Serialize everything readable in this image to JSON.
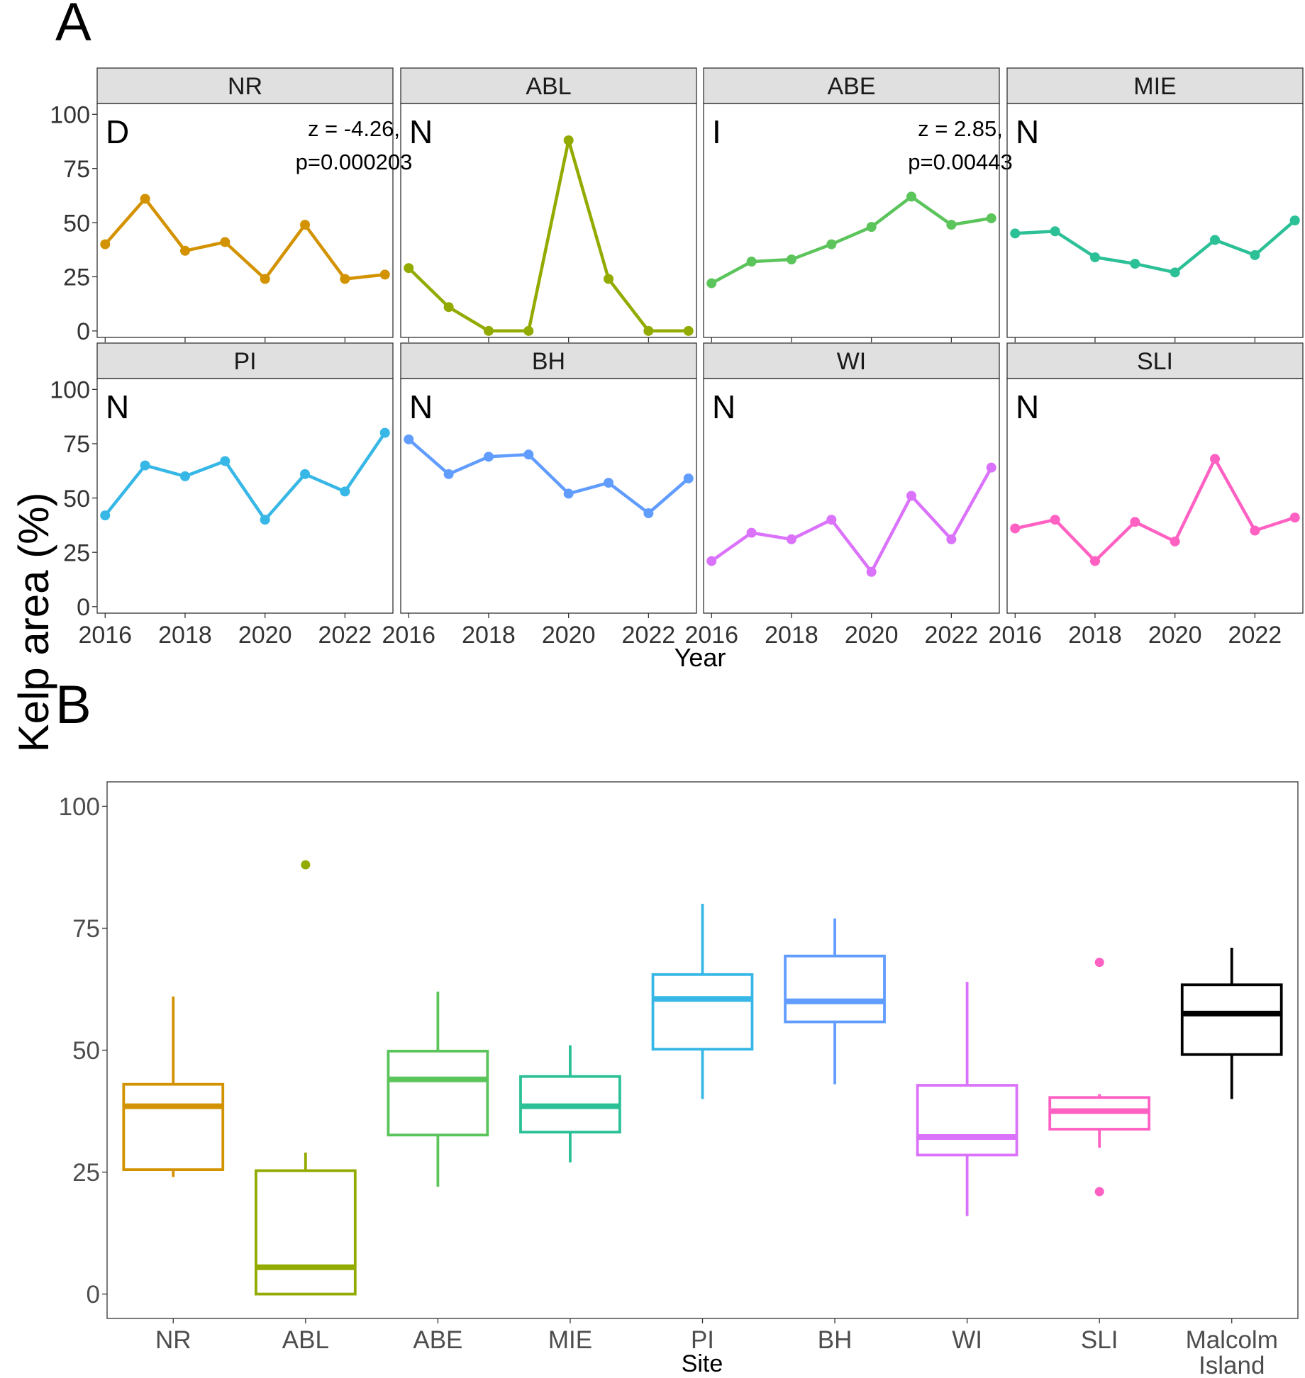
{
  "y_axis_label": "Kelp area (%)",
  "chart_data": [
    {
      "panel_label": "A",
      "type": "line",
      "facet": true,
      "xlabel": "Year",
      "ylabel": "Kelp area (%)",
      "xlim": [
        2015.8,
        2023.2
      ],
      "ylim": [
        -3,
        105
      ],
      "x_ticks": [
        2016,
        2018,
        2020,
        2022
      ],
      "x_tick_labels": [
        "2016",
        "2018",
        "2020",
        "2022"
      ],
      "y_ticks": [
        0,
        25,
        50,
        75,
        100
      ],
      "y_tick_labels": [
        "0",
        "25",
        "50",
        "75",
        "100"
      ],
      "x": [
        2016,
        2017,
        2018,
        2019,
        2020,
        2021,
        2022,
        2023
      ],
      "series": [
        {
          "name": "NR",
          "color": "#D39200",
          "trend": "D",
          "stat_z": "z = -4.26,",
          "stat_p": "p=0.000203",
          "values": [
            40,
            61,
            37,
            41,
            24,
            49,
            24,
            26
          ]
        },
        {
          "name": "ABL",
          "color": "#93AA00",
          "trend": "N",
          "values": [
            29,
            11,
            0,
            0,
            88,
            24,
            0,
            0
          ]
        },
        {
          "name": "ABE",
          "color": "#5BC45B",
          "trend": "I",
          "stat_z": "z = 2.85,",
          "stat_p": "p=0.00443",
          "values": [
            22,
            32,
            33,
            40,
            48,
            62,
            49,
            52
          ]
        },
        {
          "name": "MIE",
          "color": "#2CC097",
          "trend": "N",
          "values": [
            45,
            46,
            34,
            31,
            27,
            42,
            35,
            51
          ]
        },
        {
          "name": "PI",
          "color": "#36B7E6",
          "trend": "N",
          "values": [
            42,
            65,
            60,
            67,
            40,
            61,
            53,
            80
          ]
        },
        {
          "name": "BH",
          "color": "#619CFF",
          "trend": "N",
          "values": [
            77,
            61,
            69,
            70,
            52,
            57,
            43,
            59
          ]
        },
        {
          "name": "WI",
          "color": "#DB72FB",
          "trend": "N",
          "values": [
            21,
            34,
            31,
            40,
            16,
            51,
            31,
            64
          ]
        },
        {
          "name": "SLI",
          "color": "#FF61C3",
          "trend": "N",
          "values": [
            36,
            40,
            21,
            39,
            30,
            68,
            35,
            41
          ]
        }
      ]
    },
    {
      "panel_label": "B",
      "type": "box",
      "xlabel": "Site",
      "ylabel": "Kelp area (%)",
      "ylim": [
        -5,
        105
      ],
      "y_ticks": [
        0,
        25,
        50,
        75,
        100
      ],
      "y_tick_labels": [
        "0",
        "25",
        "50",
        "75",
        "100"
      ],
      "categories": [
        "NR",
        "ABL",
        "ABE",
        "MIE",
        "PI",
        "BH",
        "WI",
        "SLI",
        "Malcolm Island"
      ],
      "category_lines": [
        [
          "NR"
        ],
        [
          "ABL"
        ],
        [
          "ABE"
        ],
        [
          "MIE"
        ],
        [
          "PI"
        ],
        [
          "BH"
        ],
        [
          "WI"
        ],
        [
          "SLI"
        ],
        [
          "Malcolm",
          "Island"
        ]
      ],
      "boxes": [
        {
          "site": "NR",
          "color": "#D39200",
          "whisker_low": 24,
          "q1": 25.5,
          "median": 38.5,
          "q3": 43,
          "whisker_high": 61,
          "outliers": []
        },
        {
          "site": "ABL",
          "color": "#93AA00",
          "whisker_low": 0,
          "q1": 0,
          "median": 5.5,
          "q3": 25.3,
          "whisker_high": 29,
          "outliers": [
            88
          ]
        },
        {
          "site": "ABE",
          "color": "#5BC45B",
          "whisker_low": 22,
          "q1": 32.6,
          "median": 44,
          "q3": 49.8,
          "whisker_high": 62,
          "outliers": []
        },
        {
          "site": "MIE",
          "color": "#2CC097",
          "whisker_low": 27,
          "q1": 33.2,
          "median": 38.5,
          "q3": 44.6,
          "whisker_high": 51,
          "outliers": []
        },
        {
          "site": "PI",
          "color": "#36B7E6",
          "whisker_low": 40,
          "q1": 50.2,
          "median": 60.5,
          "q3": 65.5,
          "whisker_high": 80,
          "outliers": []
        },
        {
          "site": "BH",
          "color": "#619CFF",
          "whisker_low": 43,
          "q1": 55.8,
          "median": 60,
          "q3": 69.3,
          "whisker_high": 77,
          "outliers": []
        },
        {
          "site": "WI",
          "color": "#DB72FB",
          "whisker_low": 16,
          "q1": 28.5,
          "median": 32.2,
          "q3": 42.8,
          "whisker_high": 64,
          "outliers": []
        },
        {
          "site": "SLI",
          "color": "#FF61C3",
          "whisker_low": 30,
          "q1": 33.8,
          "median": 37.5,
          "q3": 40.3,
          "whisker_high": 41,
          "outliers": [
            68,
            21
          ]
        },
        {
          "site": "Malcolm Island",
          "color": "#000000",
          "whisker_low": 40,
          "q1": 49.1,
          "median": 57.5,
          "q3": 63.4,
          "whisker_high": 71,
          "outliers": []
        }
      ]
    }
  ]
}
